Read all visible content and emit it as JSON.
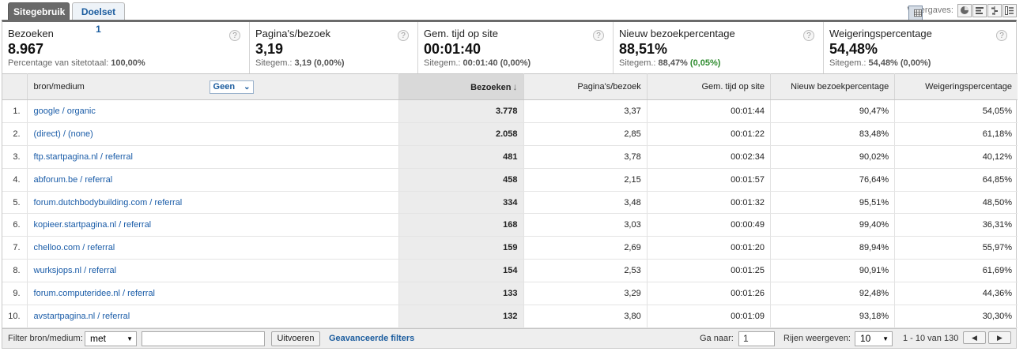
{
  "tabs": [
    {
      "label": "Sitegebruik",
      "active": true
    },
    {
      "label": "Doelset 1",
      "active": false
    }
  ],
  "views_label": "Weergaves:",
  "view_buttons": [
    "table-view-icon",
    "pie-chart-icon",
    "bar-list-icon",
    "comparison-icon",
    "pivot-icon"
  ],
  "metrics": [
    {
      "title": "Bezoeken",
      "value": "8.967",
      "sub_label": "Percentage van sitetotaal:",
      "sub_value": "100,00%",
      "sub_delta": ""
    },
    {
      "title": "Pagina's/bezoek",
      "value": "3,19",
      "sub_label": "Sitegem.:",
      "sub_value": "3,19 (0,00%)",
      "sub_delta": ""
    },
    {
      "title": "Gem. tijd op site",
      "value": "00:01:40",
      "sub_label": "Sitegem.:",
      "sub_value": "00:01:40 (0,00%)",
      "sub_delta": ""
    },
    {
      "title": "Nieuw bezoekpercentage",
      "value": "88,51%",
      "sub_label": "Sitegem.:",
      "sub_value": "88,47%",
      "sub_delta": "(0,05%)"
    },
    {
      "title": "Weigeringspercentage",
      "value": "54,48%",
      "sub_label": "Sitegem.:",
      "sub_value": "54,48% (0,00%)",
      "sub_delta": ""
    }
  ],
  "help_glyph": "?",
  "table": {
    "dimension_header": "bron/medium",
    "segment_select": "Geen",
    "columns": [
      "Bezoeken",
      "Pagina's/bezoek",
      "Gem. tijd op site",
      "Nieuw bezoekpercentage",
      "Weigeringspercentage"
    ],
    "rows": [
      {
        "n": "1.",
        "source": "google / organic",
        "visits": "3.778",
        "pps": "3,37",
        "time": "00:01:44",
        "new": "90,47%",
        "bounce": "54,05%"
      },
      {
        "n": "2.",
        "source": "(direct) / (none)",
        "visits": "2.058",
        "pps": "2,85",
        "time": "00:01:22",
        "new": "83,48%",
        "bounce": "61,18%"
      },
      {
        "n": "3.",
        "source": "ftp.startpagina.nl / referral",
        "visits": "481",
        "pps": "3,78",
        "time": "00:02:34",
        "new": "90,02%",
        "bounce": "40,12%"
      },
      {
        "n": "4.",
        "source": "abforum.be / referral",
        "visits": "458",
        "pps": "2,15",
        "time": "00:01:57",
        "new": "76,64%",
        "bounce": "64,85%"
      },
      {
        "n": "5.",
        "source": "forum.dutchbodybuilding.com / referral",
        "visits": "334",
        "pps": "3,48",
        "time": "00:01:32",
        "new": "95,51%",
        "bounce": "48,50%"
      },
      {
        "n": "6.",
        "source": "kopieer.startpagina.nl / referral",
        "visits": "168",
        "pps": "3,03",
        "time": "00:00:49",
        "new": "99,40%",
        "bounce": "36,31%"
      },
      {
        "n": "7.",
        "source": "chelloo.com / referral",
        "visits": "159",
        "pps": "2,69",
        "time": "00:01:20",
        "new": "89,94%",
        "bounce": "55,97%"
      },
      {
        "n": "8.",
        "source": "wurksjops.nl / referral",
        "visits": "154",
        "pps": "2,53",
        "time": "00:01:25",
        "new": "90,91%",
        "bounce": "61,69%"
      },
      {
        "n": "9.",
        "source": "forum.computeridee.nl / referral",
        "visits": "133",
        "pps": "3,29",
        "time": "00:01:26",
        "new": "92,48%",
        "bounce": "44,36%"
      },
      {
        "n": "10.",
        "source": "avstartpagina.nl / referral",
        "visits": "132",
        "pps": "3,80",
        "time": "00:01:09",
        "new": "93,18%",
        "bounce": "30,30%"
      }
    ]
  },
  "footer": {
    "filter_label": "Filter bron/medium:",
    "filter_mode": "met",
    "filter_value": "",
    "apply_button": "Uitvoeren",
    "advanced_link": "Geavanceerde filters",
    "goto_label": "Ga naar:",
    "goto_value": "1",
    "rows_label": "Rijen weergeven:",
    "rows_value": "10",
    "range_text": "1 - 10 van 130",
    "prev_glyph": "◀",
    "next_glyph": "▶"
  }
}
